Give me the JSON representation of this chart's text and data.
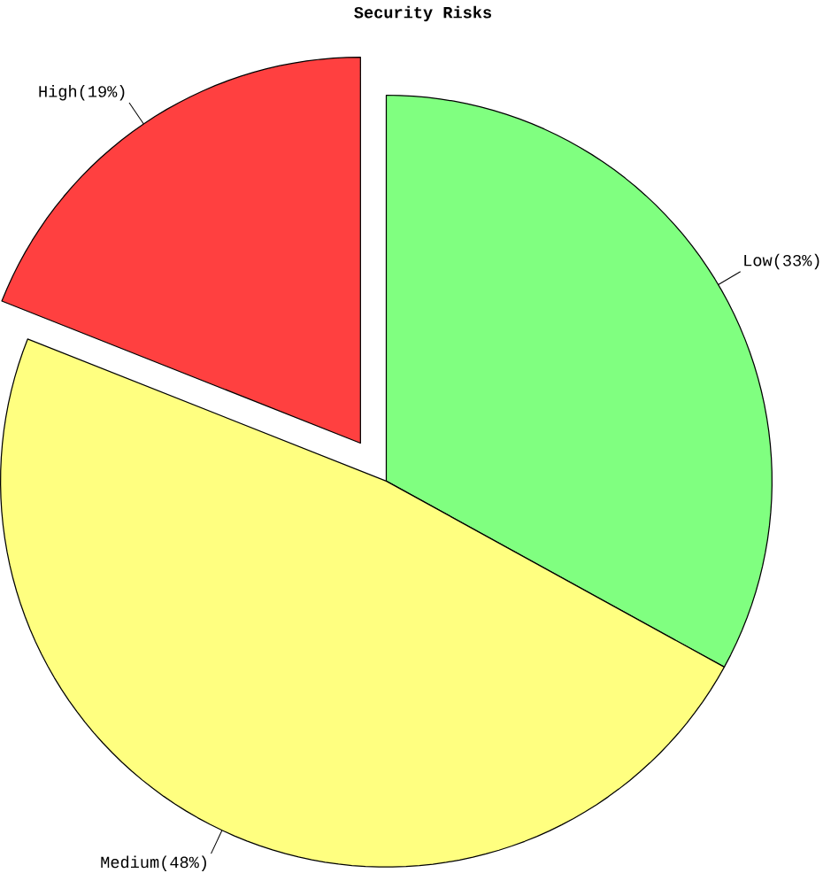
{
  "chart_data": {
    "type": "pie",
    "title": "Security Risks",
    "categories": [
      "Low",
      "Medium",
      "High"
    ],
    "values": [
      33,
      48,
      19
    ],
    "value_labels": [
      "(33%)",
      "(48%)",
      "(19%)"
    ],
    "colors": [
      "#80ff80",
      "#ffff80",
      "#ff4040"
    ]
  }
}
